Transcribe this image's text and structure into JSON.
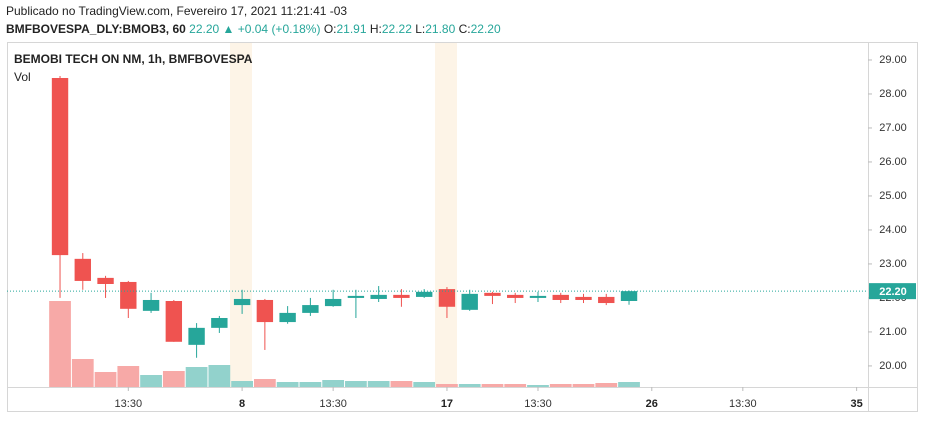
{
  "header": {
    "published": "Publicado no TradingView.com, Fevereiro 17, 2021 11:21:41 -03",
    "symbol": "BMFBOVESPA_DLY:BMOB3, 60",
    "last": "22.20",
    "change": "▲ +0.04 (+0.18%)",
    "ohlc": [
      {
        "key": "O:",
        "value": "21.91"
      },
      {
        "key": "H:",
        "value": "22.22"
      },
      {
        "key": "L:",
        "value": "21.80"
      },
      {
        "key": "C:",
        "value": "22.20"
      }
    ]
  },
  "chart_data": {
    "type": "candlestick",
    "title": "BEMOBI TECH ON NM, 1h, BMFBOVESPA",
    "x": [
      0,
      1,
      2,
      3,
      4,
      5,
      6,
      7,
      8,
      9,
      10,
      11,
      12,
      13,
      14,
      15,
      16,
      17,
      18,
      19,
      20,
      21,
      22,
      23,
      24,
      25
    ],
    "open": [
      28.47,
      23.15,
      22.59,
      22.47,
      21.62,
      21.91,
      20.62,
      21.12,
      21.79,
      21.94,
      21.29,
      21.56,
      21.76,
      22.0,
      21.97,
      22.09,
      22.03,
      22.26,
      21.65,
      22.15,
      22.09,
      22.0,
      22.09,
      22.03,
      22.03,
      21.91
    ],
    "high": [
      28.53,
      23.32,
      22.65,
      22.5,
      22.15,
      21.94,
      21.26,
      21.47,
      22.24,
      21.97,
      21.76,
      22.0,
      22.24,
      22.24,
      22.35,
      22.26,
      22.26,
      22.32,
      22.24,
      22.18,
      22.15,
      22.18,
      22.15,
      22.12,
      22.12,
      22.22
    ],
    "low": [
      22.0,
      22.24,
      22.0,
      21.41,
      21.56,
      20.71,
      20.24,
      20.97,
      21.53,
      20.47,
      21.24,
      21.47,
      21.74,
      21.41,
      21.88,
      21.74,
      22.0,
      21.41,
      21.62,
      21.82,
      21.85,
      21.88,
      21.85,
      21.85,
      21.79,
      21.8
    ],
    "close": [
      23.26,
      22.5,
      22.41,
      21.68,
      21.94,
      20.71,
      21.12,
      21.41,
      21.97,
      21.29,
      21.56,
      21.79,
      21.97,
      22.06,
      22.09,
      22.0,
      22.18,
      21.74,
      22.12,
      22.06,
      22.0,
      22.06,
      21.94,
      21.94,
      21.85,
      22.2
    ],
    "up_color": "#26a69a",
    "down_color": "#ef5350",
    "volume": {
      "name": "Vol",
      "values": [
        86,
        28,
        15,
        21,
        12,
        16,
        20,
        22,
        6,
        8,
        5,
        5,
        7,
        6,
        6,
        6,
        5,
        3,
        3,
        3,
        3,
        2,
        3,
        3,
        4,
        5
      ],
      "up_color": "#92d2cc",
      "down_color": "#f7a9a7"
    },
    "ylim": [
      19.38,
      29.47
    ],
    "yticks": [
      {
        "value": 20,
        "label": "20.00"
      },
      {
        "value": 21,
        "label": "21.00"
      },
      {
        "value": 22,
        "label": "22.00"
      },
      {
        "value": 23,
        "label": "23.00"
      },
      {
        "value": 24,
        "label": "24.00"
      },
      {
        "value": 25,
        "label": "25.00"
      },
      {
        "value": 26,
        "label": "26.00"
      },
      {
        "value": 27,
        "label": "27.00"
      },
      {
        "value": 28,
        "label": "28.00"
      },
      {
        "value": 29,
        "label": "29.00"
      }
    ],
    "xlim": [
      -2.33,
      35.5
    ],
    "xticks": [
      {
        "value": 3,
        "label": "13:30"
      },
      8,
      {
        "value": 12,
        "label": "13:30"
      },
      17,
      {
        "value": 21,
        "label": "13:30"
      },
      26,
      {
        "value": 30,
        "label": "13:30"
      },
      35
    ]
  }
}
